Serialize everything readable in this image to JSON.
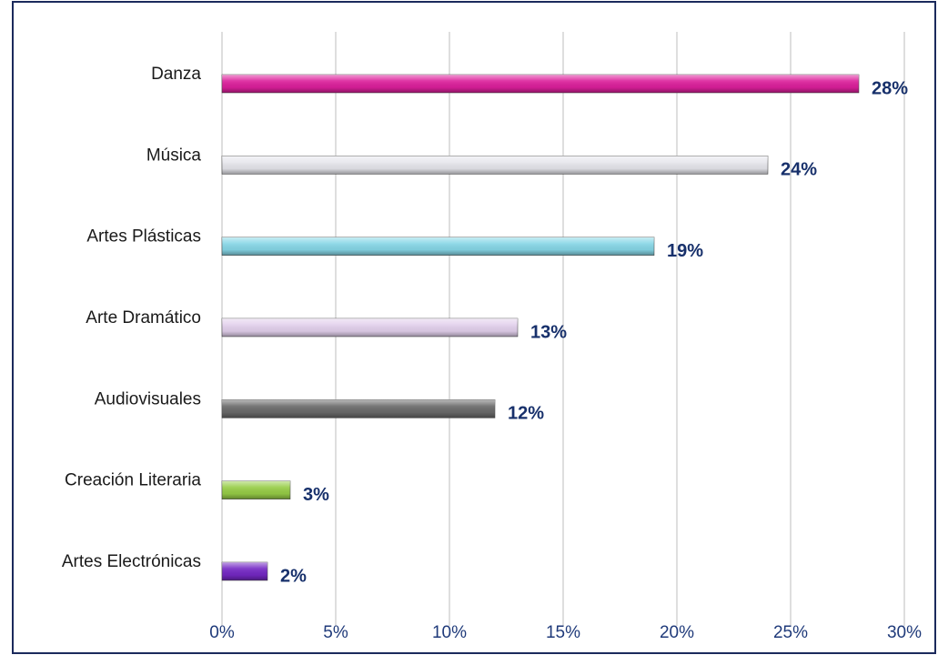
{
  "chart_data": {
    "type": "bar",
    "orientation": "horizontal",
    "categories": [
      "Danza",
      "Música",
      "Artes Plásticas",
      "Arte Dramático",
      "Audiovisuales",
      "Creación Literaria",
      "Artes Electrónicas"
    ],
    "values": [
      28,
      24,
      19,
      13,
      12,
      3,
      2
    ],
    "value_labels": [
      "28%",
      "24%",
      "19%",
      "13%",
      "12%",
      "3%",
      "2%"
    ],
    "colors": [
      "#dc1f9b",
      "#e6e6ec",
      "#86d6e6",
      "#e2d0ec",
      "#6a6a6a",
      "#96cc46",
      "#7428c4"
    ],
    "xlim": [
      0,
      30
    ],
    "xticks": [
      {
        "value": 0,
        "label": "0%"
      },
      {
        "value": 5,
        "label": "5%"
      },
      {
        "value": 10,
        "label": "10%"
      },
      {
        "value": 15,
        "label": "15%"
      },
      {
        "value": 20,
        "label": "20%"
      },
      {
        "value": 25,
        "label": "25%"
      },
      {
        "value": 30,
        "label": "30%"
      }
    ],
    "grid": true
  }
}
